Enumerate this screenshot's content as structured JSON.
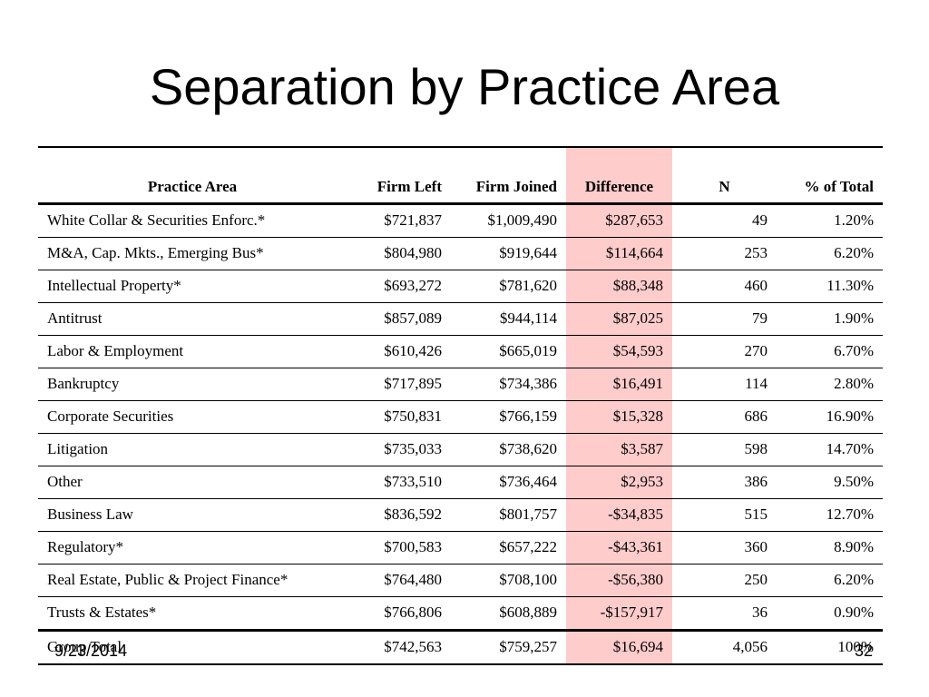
{
  "slide": {
    "title": "Separation by Practice Area",
    "footer_date": "9/23/2014",
    "page_number": "32",
    "highlight_color": "#ffcccc"
  },
  "table": {
    "headers": {
      "area": "Practice Area",
      "left": "Firm Left",
      "joined": "Firm Joined",
      "diff": "Difference",
      "n": "N",
      "pct": "% of Total"
    },
    "rows": [
      {
        "area": "White Collar & Securities Enforc.*",
        "left": "$721,837",
        "joined": "$1,009,490",
        "diff": "$287,653",
        "n": "49",
        "pct": "1.20%"
      },
      {
        "area": "M&A, Cap. Mkts., Emerging Bus*",
        "left": "$804,980",
        "joined": "$919,644",
        "diff": "$114,664",
        "n": "253",
        "pct": "6.20%"
      },
      {
        "area": "Intellectual Property*",
        "left": "$693,272",
        "joined": "$781,620",
        "diff": "$88,348",
        "n": "460",
        "pct": "11.30%"
      },
      {
        "area": "Antitrust",
        "left": "$857,089",
        "joined": "$944,114",
        "diff": "$87,025",
        "n": "79",
        "pct": "1.90%"
      },
      {
        "area": "Labor & Employment",
        "left": "$610,426",
        "joined": "$665,019",
        "diff": "$54,593",
        "n": "270",
        "pct": "6.70%"
      },
      {
        "area": "Bankruptcy",
        "left": "$717,895",
        "joined": "$734,386",
        "diff": "$16,491",
        "n": "114",
        "pct": "2.80%"
      },
      {
        "area": "Corporate Securities",
        "left": "$750,831",
        "joined": "$766,159",
        "diff": "$15,328",
        "n": "686",
        "pct": "16.90%"
      },
      {
        "area": "Litigation",
        "left": "$735,033",
        "joined": "$738,620",
        "diff": "$3,587",
        "n": "598",
        "pct": "14.70%"
      },
      {
        "area": "Other",
        "left": "$733,510",
        "joined": "$736,464",
        "diff": "$2,953",
        "n": "386",
        "pct": "9.50%"
      },
      {
        "area": "Business Law",
        "left": "$836,592",
        "joined": "$801,757",
        "diff": "-$34,835",
        "n": "515",
        "pct": "12.70%"
      },
      {
        "area": "Regulatory*",
        "left": "$700,583",
        "joined": "$657,222",
        "diff": "-$43,361",
        "n": "360",
        "pct": "8.90%"
      },
      {
        "area": "Real Estate, Public & Project Finance*",
        "left": "$764,480",
        "joined": "$708,100",
        "diff": "-$56,380",
        "n": "250",
        "pct": "6.20%"
      },
      {
        "area": "Trusts & Estates*",
        "left": "$766,806",
        "joined": "$608,889",
        "diff": "-$157,917",
        "n": "36",
        "pct": "0.90%"
      }
    ],
    "total": {
      "area": "Group Total",
      "left": "$742,563",
      "joined": "$759,257",
      "diff": "$16,694",
      "n": "4,056",
      "pct": "100%"
    }
  }
}
